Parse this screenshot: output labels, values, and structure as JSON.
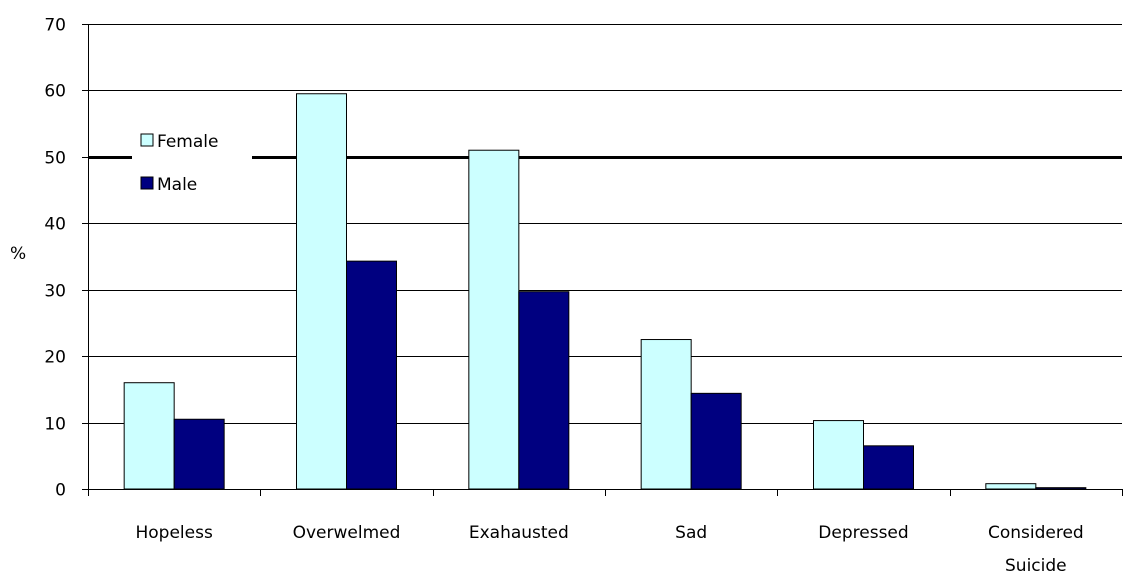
{
  "chart_data": {
    "type": "bar",
    "title": "",
    "xlabel": "",
    "ylabel": "%",
    "ylim": [
      0,
      70
    ],
    "yticks": [
      "0",
      "10",
      "20",
      "30",
      "40",
      "50",
      "60",
      "70"
    ],
    "grid": true,
    "reference_line": 50,
    "legend_position": "top-left",
    "categories": [
      [
        "Hopeless"
      ],
      [
        "Overwelmed"
      ],
      [
        "Exahausted"
      ],
      [
        "Sad"
      ],
      [
        "Depressed"
      ],
      [
        "Considered",
        "Suicide"
      ]
    ],
    "series": [
      {
        "name": "Female",
        "color": "#ccffff",
        "values": [
          16,
          59.5,
          51,
          22.5,
          10.3,
          0.8
        ]
      },
      {
        "name": "Male",
        "color": "#000080",
        "values": [
          10.5,
          34.3,
          29.7,
          14.4,
          6.5,
          0.2
        ]
      }
    ]
  }
}
